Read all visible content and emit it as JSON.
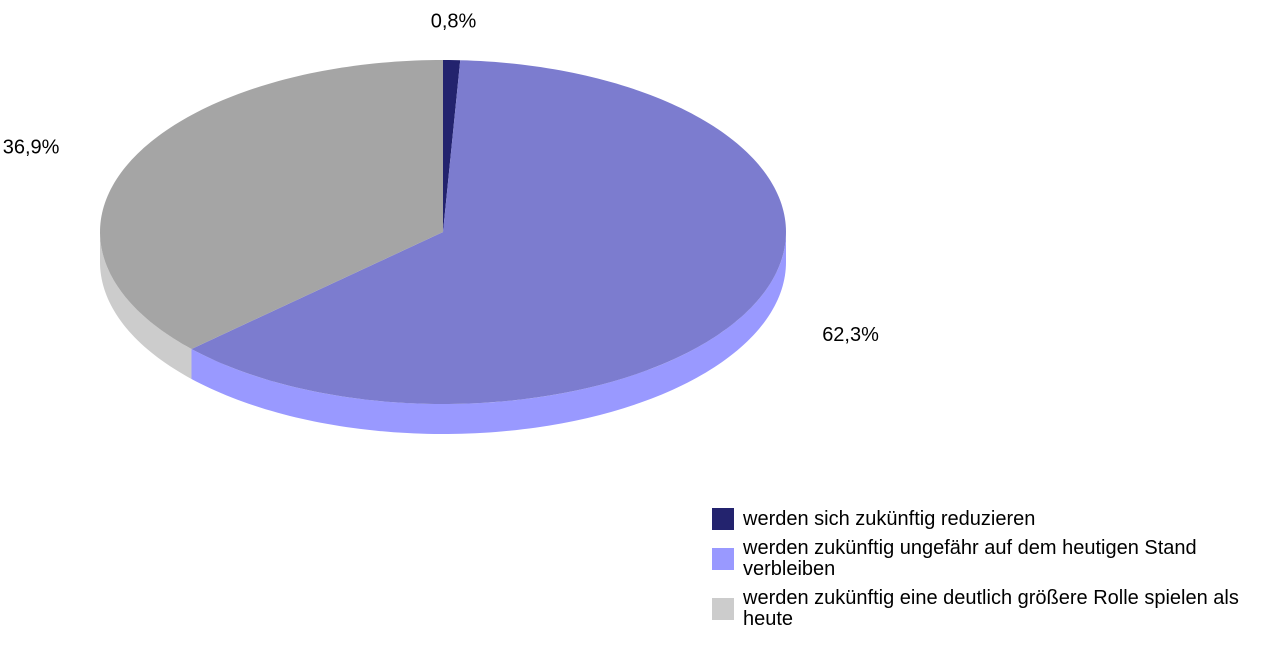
{
  "chart_data": {
    "type": "pie",
    "categories": [
      "werden sich zukünftig reduzieren",
      "werden zukünftig ungefähr auf dem heutigen Stand verbleiben",
      "werden zukünftig eine deutlich größere Rolle spielen als heute"
    ],
    "values": [
      0.8,
      62.3,
      36.9
    ],
    "value_labels": [
      "0,8%",
      "62,3%",
      "36,9%"
    ],
    "colors": [
      "#23236e",
      "#9999ff",
      "#cccccc"
    ],
    "legend": "bottom-right"
  }
}
